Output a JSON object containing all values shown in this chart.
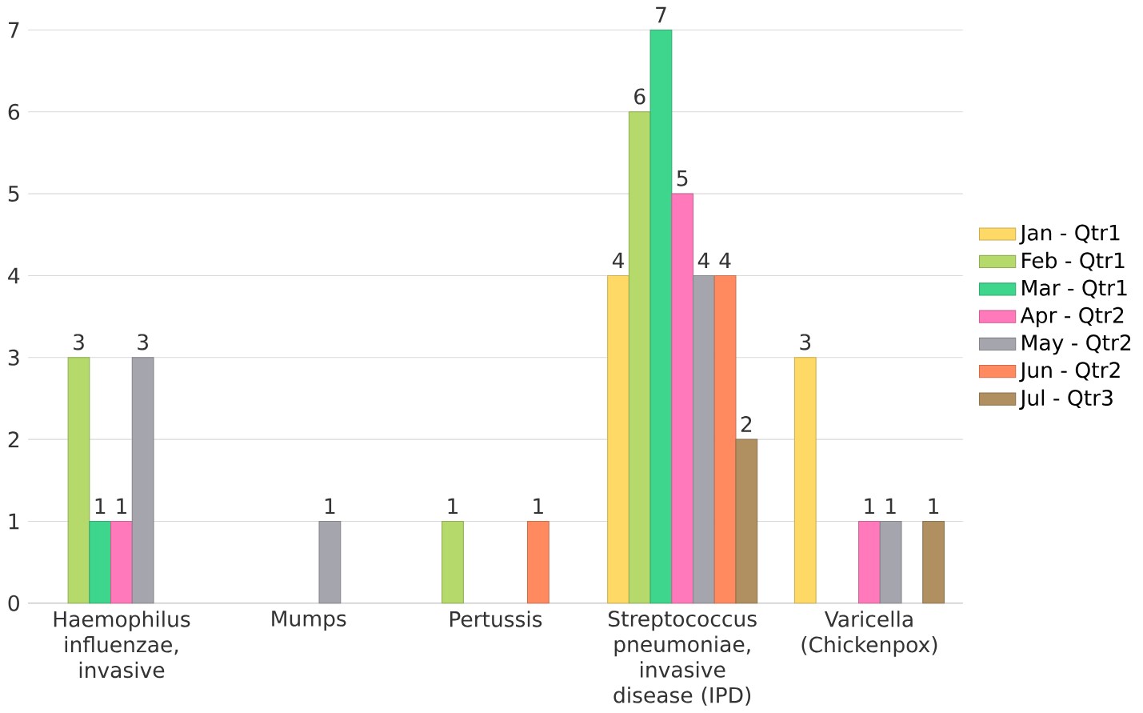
{
  "chart_data": {
    "type": "bar",
    "categories": [
      "Haemophilus influenzae, invasive",
      "Mumps",
      "Pertussis",
      "Streptococcus pneumoniae, invasive disease (IPD)",
      "Varicella (Chickenpox)"
    ],
    "series": [
      {
        "name": "Jan - Qtr1",
        "color": "#ffd966",
        "values": [
          null,
          null,
          null,
          4,
          3
        ]
      },
      {
        "name": "Feb - Qtr1",
        "color": "#b5d96a",
        "values": [
          3,
          null,
          1,
          6,
          null
        ]
      },
      {
        "name": "Mar - Qtr1",
        "color": "#3dd68c",
        "values": [
          1,
          null,
          null,
          7,
          null
        ]
      },
      {
        "name": "Apr - Qtr2",
        "color": "#ff79bb",
        "values": [
          1,
          null,
          null,
          5,
          1
        ]
      },
      {
        "name": "May - Qtr2",
        "color": "#a5a5ad",
        "values": [
          3,
          1,
          null,
          4,
          1
        ]
      },
      {
        "name": "Jun - Qtr2",
        "color": "#ff8a60",
        "values": [
          null,
          null,
          1,
          4,
          null
        ]
      },
      {
        "name": "Jul - Qtr3",
        "color": "#b09060",
        "values": [
          null,
          null,
          null,
          2,
          1
        ]
      }
    ],
    "ylim": [
      0,
      7
    ],
    "yticks": [
      0,
      1,
      2,
      3,
      4,
      5,
      6,
      7
    ],
    "grid": "y",
    "legend": "right",
    "data_labels": true
  }
}
